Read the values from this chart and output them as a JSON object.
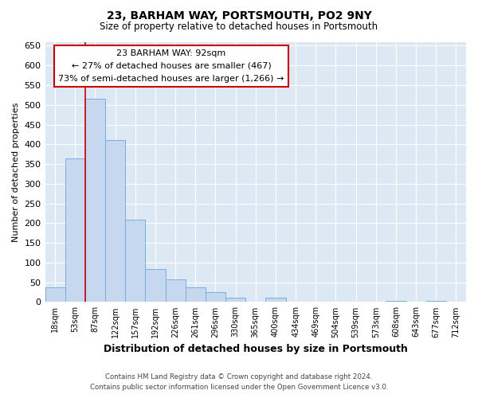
{
  "title1": "23, BARHAM WAY, PORTSMOUTH, PO2 9NY",
  "title2": "Size of property relative to detached houses in Portsmouth",
  "xlabel": "Distribution of detached houses by size in Portsmouth",
  "ylabel": "Number of detached properties",
  "categories": [
    "18sqm",
    "53sqm",
    "87sqm",
    "122sqm",
    "157sqm",
    "192sqm",
    "226sqm",
    "261sqm",
    "296sqm",
    "330sqm",
    "365sqm",
    "400sqm",
    "434sqm",
    "469sqm",
    "504sqm",
    "539sqm",
    "573sqm",
    "608sqm",
    "643sqm",
    "677sqm",
    "712sqm"
  ],
  "values": [
    38,
    365,
    515,
    410,
    208,
    83,
    57,
    37,
    25,
    10,
    0,
    10,
    0,
    0,
    0,
    0,
    0,
    3,
    0,
    3,
    0
  ],
  "bar_color": "#c5d8f0",
  "bar_edge_color": "#7aaddc",
  "bg_color": "#dce9f5",
  "grid_color": "#ffffff",
  "vline_color": "#cc0000",
  "vline_x_index": 2,
  "annotation_text": "23 BARHAM WAY: 92sqm\n← 27% of detached houses are smaller (467)\n73% of semi-detached houses are larger (1,266) →",
  "annotation_box_facecolor": "#ffffff",
  "annotation_box_edgecolor": "#cc0000",
  "footer1": "Contains HM Land Registry data © Crown copyright and database right 2024.",
  "footer2": "Contains public sector information licensed under the Open Government Licence v3.0.",
  "fig_facecolor": "#ffffff",
  "ylim": [
    0,
    660
  ],
  "yticks": [
    0,
    50,
    100,
    150,
    200,
    250,
    300,
    350,
    400,
    450,
    500,
    550,
    600,
    650
  ]
}
